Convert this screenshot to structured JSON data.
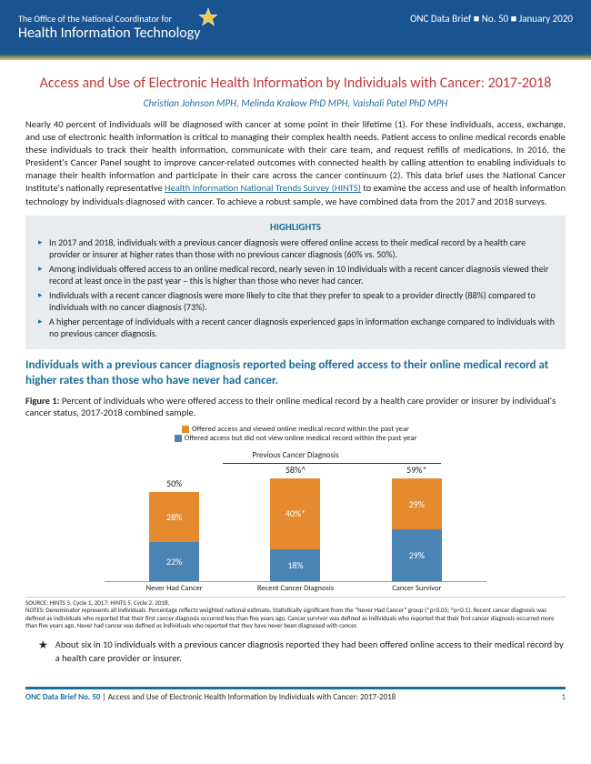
{
  "header": {
    "office_line1": "The Office of the National Coordinator for",
    "office_line2": "Health Information Technology",
    "brief_id": "ONC Data Brief ■ No. 50 ■ January 2020"
  },
  "title": "Access and Use of Electronic Health Information by Individuals with Cancer: 2017-2018",
  "authors": "Christian Johnson MPH, Melinda Krakow PhD MPH, Vaishali Patel PhD MPH",
  "intro_before_link": "Nearly 40 percent of individuals will be diagnosed with cancer at some point in their lifetime (1). For these individuals, access, exchange, and use of electronic health information is critical to managing their complex health needs. Patient access to online medical records enable these individuals to track their health information, communicate with their care team, and request refills of medications. In 2016, the President's Cancer Panel sought to improve cancer-related outcomes with connected health by calling attention to enabling individuals to manage their health information and participate in their care across the cancer continuum (2). This data brief uses the National Cancer Institute's nationally representative ",
  "link_text": "Health Information National Trends Survey (HINTS)",
  "intro_after_link": " to examine the access and use of health information technology by individuals diagnosed with cancer. To achieve a robust sample, we have combined data from the 2017 and 2018 surveys.",
  "highlights": {
    "title": "HIGHLIGHTS",
    "items": [
      "In 2017 and 2018, individuals with a previous cancer diagnosis were offered online access to their medical record by a health care provider or insurer at higher rates than those with no previous cancer diagnosis (60% vs. 50%).",
      "Among individuals offered access to an online medical record, nearly seven in 10 individuals with a recent cancer diagnosis viewed their record at least once in the past year – this is higher than those who never had cancer.",
      "Individuals with a recent cancer diagnosis were more likely to cite that they prefer to speak to a provider directly (88%) compared to individuals with no cancer diagnosis (73%).",
      "A higher percentage of individuals with a recent cancer diagnosis experienced gaps in information exchange compared to individuals with no previous cancer diagnosis."
    ]
  },
  "section_heading": "Individuals with a previous cancer diagnosis reported being offered access to their online medical record at higher rates than those who have never had cancer.",
  "figure": {
    "label_bold": "Figure 1:",
    "label_rest": " Percent of individuals who were offered access to their online medical record by a health care provider or insurer by individual's cancer status, 2017-2018 combined sample.",
    "legend": [
      {
        "color": "#e58a2e",
        "text": "Offered access and viewed online medical record within the past year"
      },
      {
        "color": "#4a84b5",
        "text": "Offered access but did not view online medical record within the past year"
      }
    ],
    "group_title": "Previous Cancer Diagnosis",
    "ylim": 100,
    "bars": [
      {
        "label": "Never Had Cancer",
        "total": "50%",
        "segments": [
          {
            "v": 22,
            "t": "22%",
            "c": "#4a84b5"
          },
          {
            "v": 28,
            "t": "28%",
            "c": "#e58a2e"
          }
        ]
      },
      {
        "label": "Recent Cancer Diagnosis",
        "total": "58%^",
        "segments": [
          {
            "v": 18,
            "t": "18%",
            "c": "#4a84b5"
          },
          {
            "v": 40,
            "t": "40%*",
            "c": "#e58a2e"
          }
        ]
      },
      {
        "label": "Cancer Survivor",
        "total": "59%*",
        "segments": [
          {
            "v": 29,
            "t": "29%",
            "c": "#4a84b5"
          },
          {
            "v": 29,
            "t": "29%",
            "c": "#e58a2e"
          }
        ]
      }
    ],
    "source": "SOURCE: HINTS 5, Cycle 1, 2017; HINTS 5, Cycle 2, 2018.",
    "notes": "NOTES: Denominator represents all individuals.  Percentage reflects weighted national estimate. Statistically significant from the \"Never Had Cancer\" group (*p<0.05; ^p<0.1). Recent cancer diagnosis was defined as individuals who reported that their first cancer diagnosis occurred less than five years ago. Cancer survivor was defined as individuals who reported that their first cancer diagnosis occurred more than five years ago. Never had cancer was defined as individuals who reported that they have never been diagnosed with cancer."
  },
  "callout": "About six in 10 individuals with a previous cancer diagnosis reported they had been offered online access to their medical record by a health care provider or insurer.",
  "footer": {
    "left_bold": "ONC Data Brief No. 50",
    "left_rest": " | Access and Use of Electronic Health Information by Individuals with Cancer: 2017-2018",
    "page": "1"
  },
  "colors": {
    "accent": "#1a6f9c",
    "header_bg": "#1a5490",
    "gold": "#f0c94a",
    "red": "#c03838"
  }
}
